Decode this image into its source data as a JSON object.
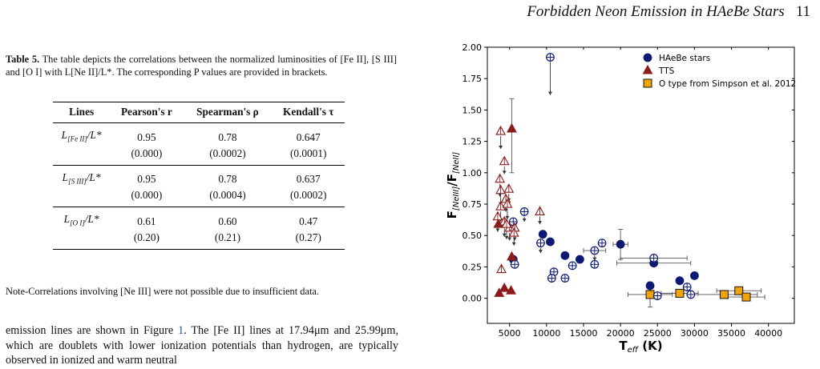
{
  "header": {
    "title": "Forbidden Neon Emission in HAeBe Stars",
    "page_number": "11"
  },
  "table": {
    "caption_label": "Table 5.",
    "caption_text": "The table depicts the correlations between the normalized luminosities of [Fe II], [S III] and [O I] with L[Ne II]/L*. The corresponding P values are provided in brackets.",
    "columns": [
      "Lines",
      "Pearson's r",
      "Spearman's ρ",
      "Kendall's τ"
    ],
    "rows": [
      {
        "line": "L",
        "sub": "[Fe II]",
        "den": "/L*",
        "values": [
          "0.95",
          "0.78",
          "0.647"
        ],
        "pvalues": [
          "(0.000)",
          "(0.0002)",
          "(0.0001)"
        ]
      },
      {
        "line": "L",
        "sub": "[S III]",
        "den": "/L*",
        "values": [
          "0.95",
          "0.78",
          "0.637"
        ],
        "pvalues": [
          "(0.000)",
          "(0.0004)",
          "(0.0002)"
        ]
      },
      {
        "line": "L",
        "sub": "[O I]",
        "den": "/L*",
        "values": [
          "0.61",
          "0.60",
          "0.47"
        ],
        "pvalues": [
          "(0.20)",
          "(0.21)",
          "(0.27)"
        ]
      }
    ],
    "note": "Note-Correlations involving [Ne III] were not possible due to insufficient data."
  },
  "body": {
    "line1_a": "emission lines are shown in Figure ",
    "fig_ref": "1",
    "line1_b": ". The [Fe II] lines at 17.94μm",
    "line2": "and 25.99μm, which are doublets with lower ionization potentials",
    "line3": "than hydrogen, are typically observed in ionized and warm neutral"
  },
  "chart_data": {
    "type": "scatter",
    "xlabel": "T",
    "xlabel_sub": "eff",
    "xlabel_unit": " (K)",
    "ylabel": "F",
    "ylabel_sub1": "[NeIII]",
    "ylabel_sub2": "[NeII]",
    "xlim": [
      2000,
      43500
    ],
    "ylim": [
      -0.2,
      2.0
    ],
    "xticks": [
      5000,
      10000,
      15000,
      20000,
      25000,
      30000,
      35000,
      40000
    ],
    "yticks": [
      0.0,
      0.25,
      0.5,
      0.75,
      1.0,
      1.25,
      1.5,
      1.75,
      2.0
    ],
    "ytick_labels": [
      "0.00",
      "0.25",
      "0.50",
      "0.75",
      "1.00",
      "1.25",
      "1.50",
      "1.75",
      "2.00"
    ],
    "legend": {
      "position": "top-right",
      "entries": [
        "HAeBe stars",
        "TTS",
        "O type from Simpson et al. 2012"
      ]
    },
    "colors": {
      "haebe": "#0d1a73",
      "tts": "#8b1a1a",
      "otype": "#f0a30a"
    },
    "series": [
      {
        "name": "HAeBe stars",
        "marker": "circle",
        "filled_points": [
          {
            "x": 5500,
            "y": 0.31
          },
          {
            "x": 9500,
            "y": 0.51
          },
          {
            "x": 10500,
            "y": 0.45
          },
          {
            "x": 12500,
            "y": 0.34
          },
          {
            "x": 14500,
            "y": 0.31
          },
          {
            "x": 20000,
            "y": 0.43,
            "yerr": 0.12,
            "xerr": 1000
          },
          {
            "x": 24000,
            "y": 0.1
          },
          {
            "x": 24500,
            "y": 0.28,
            "xerr": 5000
          },
          {
            "x": 28000,
            "y": 0.14
          },
          {
            "x": 30000,
            "y": 0.18
          }
        ],
        "upper_limits": [
          {
            "x": 10500,
            "y": 1.92,
            "len": 0.3
          },
          {
            "x": 5500,
            "y": 0.61,
            "len": 0.08
          },
          {
            "x": 7000,
            "y": 0.69,
            "len": 0.08
          },
          {
            "x": 5700,
            "y": 0.27,
            "len": 0.0
          },
          {
            "x": 9200,
            "y": 0.44,
            "len": 0.08
          },
          {
            "x": 11000,
            "y": 0.21,
            "len": 0.0
          },
          {
            "x": 10700,
            "y": 0.16,
            "len": 0.0
          },
          {
            "x": 12500,
            "y": 0.16,
            "len": 0.0
          },
          {
            "x": 13500,
            "y": 0.26,
            "len": 0.0
          },
          {
            "x": 16500,
            "y": 0.38,
            "len": 0.08,
            "xerr": 1500
          },
          {
            "x": 16500,
            "y": 0.27,
            "len": 0.0
          },
          {
            "x": 17500,
            "y": 0.44,
            "len": 0.0
          },
          {
            "x": 24500,
            "y": 0.32,
            "len": 0.0,
            "xerr": 4500
          },
          {
            "x": 29000,
            "y": 0.09,
            "len": 0.0
          },
          {
            "x": 29500,
            "y": 0.03,
            "len": 0.0
          },
          {
            "x": 25000,
            "y": 0.02,
            "len": 0.0
          }
        ]
      },
      {
        "name": "TTS",
        "marker": "triangle",
        "filled_points": [
          {
            "x": 5300,
            "y": 1.35,
            "yerr_up": 0.24,
            "yerr_down": 0.35
          },
          {
            "x": 3500,
            "y": 0.59
          },
          {
            "x": 3600,
            "y": 0.04
          },
          {
            "x": 4300,
            "y": 0.08
          },
          {
            "x": 5200,
            "y": 0.06
          },
          {
            "x": 5300,
            "y": 0.33
          }
        ],
        "upper_limits": [
          {
            "x": 3800,
            "y": 1.33,
            "len": 0.14
          },
          {
            "x": 4300,
            "y": 1.09,
            "len": 0.1
          },
          {
            "x": 3700,
            "y": 0.95,
            "len": 0.14
          },
          {
            "x": 3800,
            "y": 0.86,
            "len": 0.12
          },
          {
            "x": 4500,
            "y": 0.79,
            "len": 0.1
          },
          {
            "x": 4900,
            "y": 0.87,
            "len": 0.1
          },
          {
            "x": 3800,
            "y": 0.73,
            "len": 0.12
          },
          {
            "x": 4700,
            "y": 0.75,
            "len": 0.12
          },
          {
            "x": 3400,
            "y": 0.65,
            "len": 0.12
          },
          {
            "x": 4300,
            "y": 0.61,
            "len": 0.12
          },
          {
            "x": 5000,
            "y": 0.56,
            "len": 0.1
          },
          {
            "x": 5700,
            "y": 0.56,
            "len": 0.1
          },
          {
            "x": 4600,
            "y": 0.59,
            "len": 0.12
          },
          {
            "x": 5600,
            "y": 0.52,
            "len": 0.1
          },
          {
            "x": 9100,
            "y": 0.69,
            "len": 0.1
          },
          {
            "x": 3900,
            "y": 0.23,
            "len": 0.0
          }
        ]
      },
      {
        "name": "O type from Simpson et al. 2012",
        "marker": "square",
        "filled_points": [
          {
            "x": 24000,
            "y": 0.03,
            "xerr": 3000,
            "yerr": 0.1
          },
          {
            "x": 28000,
            "y": 0.04,
            "xerr": 2500
          },
          {
            "x": 34000,
            "y": 0.03,
            "xerr": 4500
          },
          {
            "x": 36000,
            "y": 0.06,
            "xerr": 3000
          },
          {
            "x": 37000,
            "y": 0.01,
            "xerr": 2500
          }
        ]
      }
    ]
  }
}
